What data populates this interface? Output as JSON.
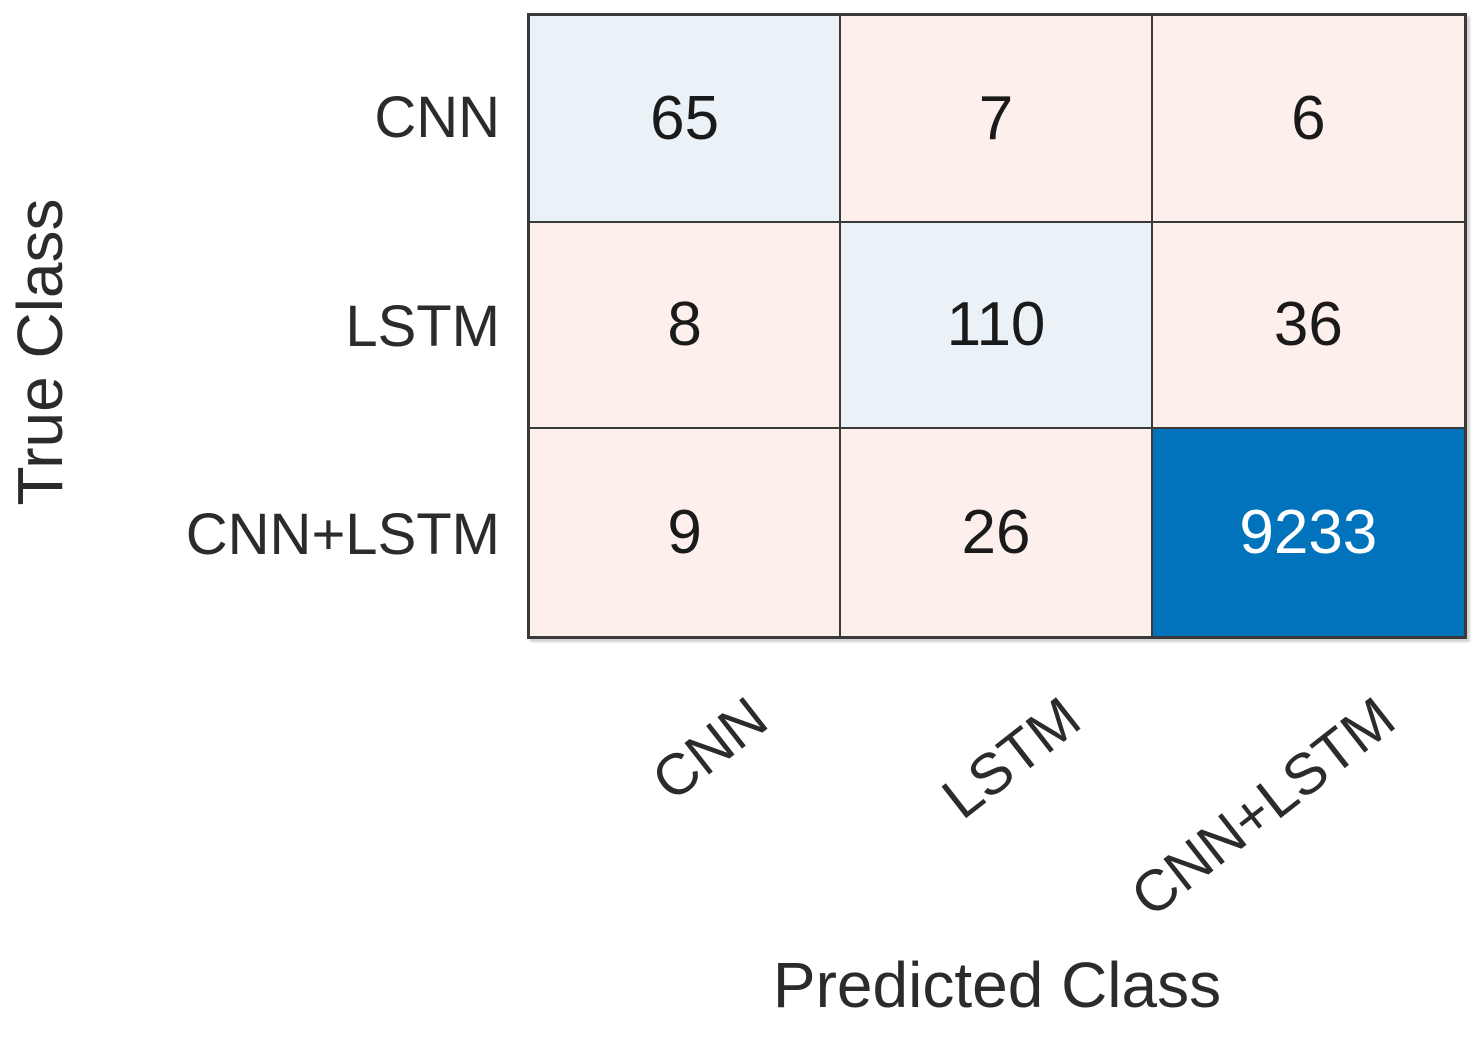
{
  "chart_data": {
    "type": "heatmap",
    "title": "",
    "xlabel": "Predicted Class",
    "ylabel": "True Class",
    "categories": [
      "CNN",
      "LSTM",
      "CNN+LSTM"
    ],
    "row_labels": [
      "CNN",
      "LSTM",
      "CNN+LSTM"
    ],
    "col_labels": [
      "CNN",
      "LSTM",
      "CNN+LSTM"
    ],
    "matrix": [
      [
        65,
        7,
        6
      ],
      [
        8,
        110,
        36
      ],
      [
        9,
        26,
        9233
      ]
    ],
    "legend_position": "none",
    "grid_on": true,
    "colors": {
      "diagonal_light": "#eaf2f8",
      "diagonal_strong": "#0173bd",
      "off_diagonal": "#fdf0ec",
      "grid_line": "#3a3a3a",
      "text_dark": "#1a1a1a",
      "text_light": "#ffffff"
    },
    "cell_colors": [
      [
        "#eaf2f8",
        "#fdf0ec",
        "#fdf0ec"
      ],
      [
        "#fdf0ec",
        "#eaf2f8",
        "#fdf0ec"
      ],
      [
        "#fdf0ec",
        "#fdf0ec",
        "#0173bd"
      ]
    ],
    "cell_text_colors": [
      [
        "dark",
        "dark",
        "dark"
      ],
      [
        "dark",
        "dark",
        "dark"
      ],
      [
        "dark",
        "dark",
        "light"
      ]
    ]
  }
}
